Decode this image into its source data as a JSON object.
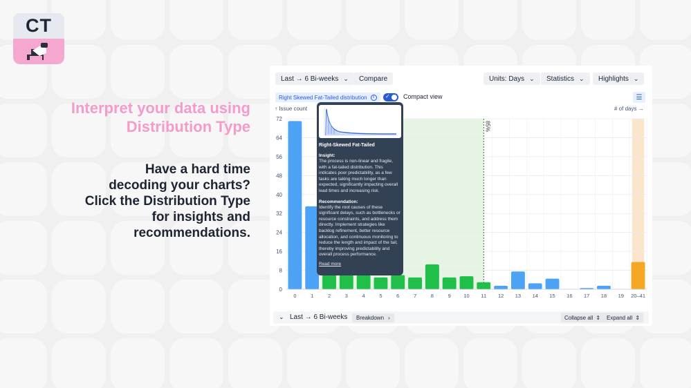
{
  "logo": {
    "text": "CT"
  },
  "hero": {
    "headline_line1": "Interpret your data using",
    "headline_line2": "Distribution Type",
    "sub_line1": "Have a hard time",
    "sub_line2": "decoding your charts?",
    "sub_line3": "Click the Distribution Type",
    "sub_line4": "for insights and",
    "sub_line5": "recommendations."
  },
  "toolbar": {
    "period_label": "Last → 6 Bi-weeks",
    "compare_label": "Compare",
    "units_label": "Units: Days",
    "statistics_label": "Statistics",
    "highlights_label": "Highlights"
  },
  "controls": {
    "distribution_label": "Right Skewed Fat-Tailed distribution",
    "compact_view_label": "Compact view",
    "compact_view_on": true
  },
  "tooltip": {
    "title": "Right-Skewed Fat-Tailed",
    "insight_heading": "Insight:",
    "insight_text": "The process is non-linear and fragile, with a fat-tailed distribution. This indicates poor predictability, as a few tasks are taking much longer than expected, significantly impacting overall lead times and increasing risk.",
    "recommendation_heading": "Recommendation:",
    "recommendation_text": "Identify the root causes of these significant delays, such as bottlenecks or resource constraints, and address them directly. Implement strategies like backlog refinement, better resource allocation, and continuous monitoring to reduce the length and impact of the tail, thereby improving predictability and overall process performance.",
    "read_more": "Read more"
  },
  "footer": {
    "group_label": "Last → 6 Bi-weeks",
    "breakdown_label": "Breakdown",
    "collapse_label": "Collapse all",
    "expand_label": "Expand all"
  },
  "colors": {
    "blue": "#4ca3f5",
    "green": "#1fbf49",
    "orange": "#f5a623",
    "green_band": "#e6f5e3",
    "orange_band": "#fbe6cc",
    "brand_pink": "#f39bc9"
  },
  "chart_data": {
    "type": "bar",
    "ylabel": "↑ Issue count",
    "xlabel": "# of days →",
    "ylim": [
      0,
      72
    ],
    "yticks": [
      0,
      8,
      16,
      24,
      32,
      40,
      48,
      56,
      64,
      72
    ],
    "categories": [
      "0",
      "1",
      "2",
      "3",
      "4",
      "5",
      "6",
      "7",
      "8",
      "9",
      "10",
      "11",
      "12",
      "13",
      "14",
      "15",
      "16",
      "17",
      "18",
      "19",
      "20–41"
    ],
    "values": [
      71,
      35,
      6,
      6,
      6,
      5,
      6,
      5,
      10.5,
      5,
      5.5,
      3,
      1.5,
      7.5,
      2.5,
      4.5,
      0,
      0.5,
      1.5,
      0,
      11.5
    ],
    "bar_colors": [
      "blue",
      "blue",
      "green",
      "green",
      "green",
      "green",
      "green",
      "green",
      "green",
      "green",
      "green",
      "green",
      "blue",
      "blue",
      "blue",
      "blue",
      "blue",
      "blue",
      "blue",
      "blue",
      "orange"
    ],
    "percentile_label": "85%",
    "percentile_at_category": "11",
    "green_band_categories": [
      "2",
      "11"
    ],
    "orange_band_category": "20–41"
  }
}
